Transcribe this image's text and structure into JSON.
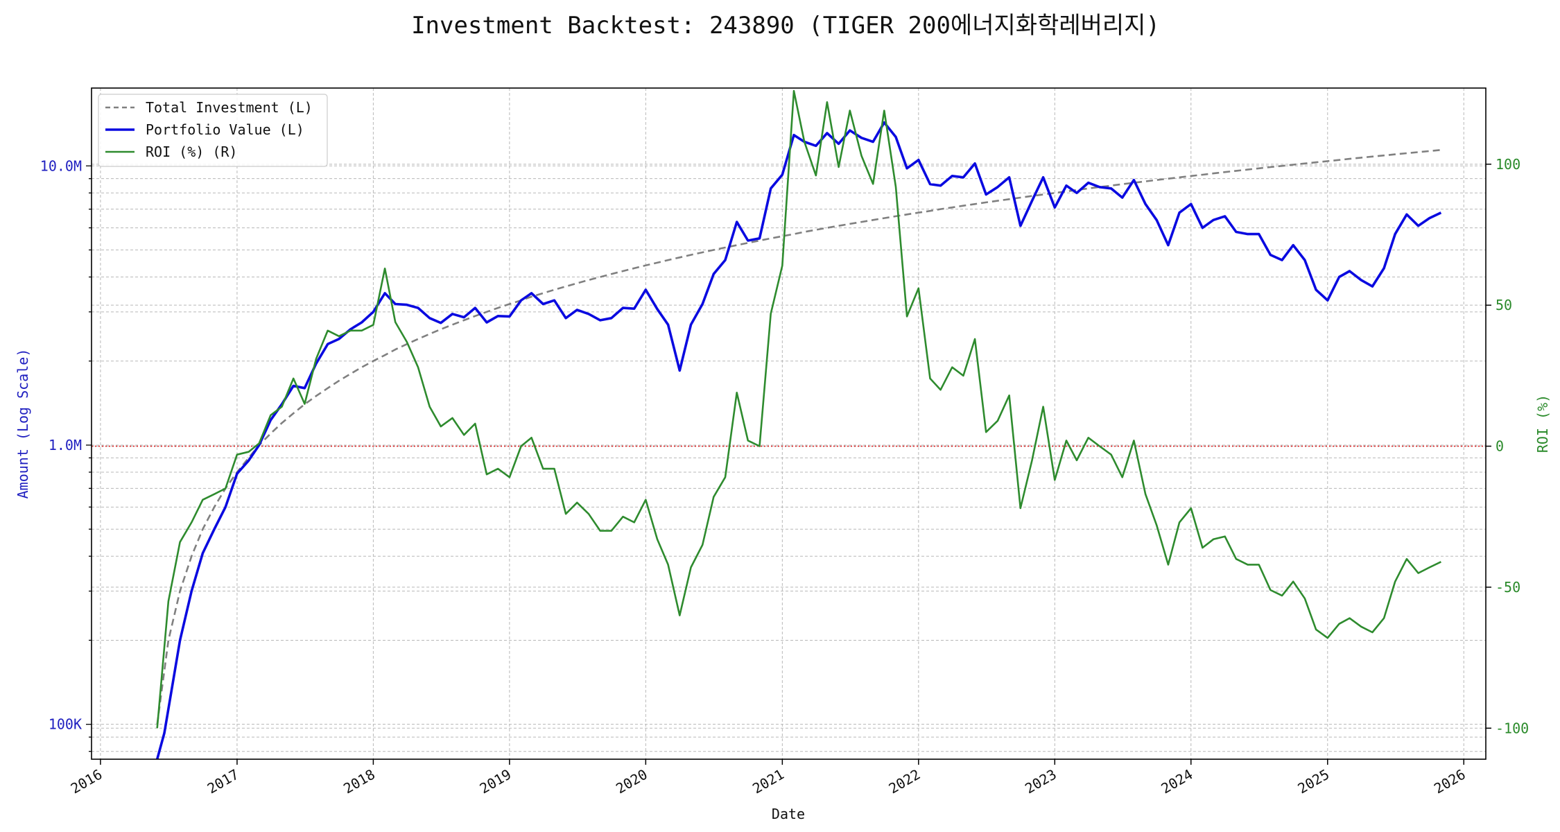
{
  "chart_data": {
    "type": "line",
    "title": "Investment Backtest: 243890 (TIGER 200에너지화학레버리지)",
    "xlabel": "Date",
    "ylabel_left": "Amount (Log Scale)",
    "ylabel_right": "ROI (%)",
    "x_ticks": [
      "2016",
      "2017",
      "2018",
      "2019",
      "2020",
      "2021",
      "2022",
      "2023",
      "2024",
      "2025",
      "2026"
    ],
    "left_ticks": [
      {
        "label": "100K",
        "value": 100000
      },
      {
        "label": "1.0M",
        "value": 1000000
      },
      {
        "label": "10.0M",
        "value": 10000000
      }
    ],
    "right_ticks": [
      {
        "label": "100",
        "value": 100
      },
      {
        "label": "50",
        "value": 50
      },
      {
        "label": "0",
        "value": 0
      },
      {
        "label": "-50",
        "value": -50
      },
      {
        "label": "-100",
        "value": -100
      }
    ],
    "xlim": [
      "2015-12-08",
      "2026-03-01"
    ],
    "ylim_left": [
      75000,
      19000000
    ],
    "ylim_right": [
      -111,
      127
    ],
    "left_scale": "log",
    "grid": true,
    "legend_position": "top-left",
    "reference_line": {
      "axis": "right",
      "value": 0,
      "style": "dotted",
      "color": "#dd2222"
    },
    "colors": {
      "investment": "#808080",
      "portfolio": "#0a0ae0",
      "roi": "#2e8b2e",
      "left_axis": "#2020c0",
      "right_axis": "#2a8a2a"
    },
    "series": [
      {
        "name": "Total Investment (L)",
        "axis": "left",
        "style": "dashed",
        "x": [
          "2016-06-01",
          "2016-07-01",
          "2016-08-01",
          "2016-09-01",
          "2016-10-01",
          "2016-11-01",
          "2016-12-01",
          "2017-01-01",
          "2017-02-01",
          "2017-03-01",
          "2017-04-01",
          "2017-05-01",
          "2017-06-01",
          "2017-07-01",
          "2017-08-01",
          "2017-09-01",
          "2017-10-01",
          "2017-11-01",
          "2017-12-01",
          "2018-01-01",
          "2018-02-01",
          "2018-03-01",
          "2018-04-01",
          "2018-05-01",
          "2018-06-01",
          "2018-07-01",
          "2018-08-01",
          "2018-09-01",
          "2018-10-01",
          "2018-11-01",
          "2018-12-01",
          "2019-01-01",
          "2019-02-01",
          "2019-03-01",
          "2019-04-01",
          "2019-05-01",
          "2019-06-01",
          "2019-07-01",
          "2019-08-01",
          "2019-09-01",
          "2019-10-01",
          "2019-11-01",
          "2019-12-01",
          "2020-01-01",
          "2020-02-01",
          "2020-03-01",
          "2020-04-01",
          "2020-05-01",
          "2020-06-01",
          "2020-07-01",
          "2020-08-01",
          "2020-09-01",
          "2020-10-01",
          "2020-11-01",
          "2020-12-01",
          "2021-01-01",
          "2021-02-01",
          "2021-03-01",
          "2021-04-01",
          "2021-05-01",
          "2021-06-01",
          "2021-07-01",
          "2021-08-01",
          "2021-09-01",
          "2021-10-01",
          "2021-11-01",
          "2021-12-01",
          "2022-01-01",
          "2022-02-01",
          "2022-03-01",
          "2022-04-01",
          "2022-05-01",
          "2022-06-01",
          "2022-07-01",
          "2022-08-01",
          "2022-09-01",
          "2022-10-01",
          "2022-11-01",
          "2022-12-01",
          "2023-01-01",
          "2023-02-01",
          "2023-03-01",
          "2023-04-01",
          "2023-05-01",
          "2023-06-01",
          "2023-07-01",
          "2023-08-01",
          "2023-09-01",
          "2023-10-01",
          "2023-11-01",
          "2023-12-01",
          "2024-01-01",
          "2024-02-01",
          "2024-03-01",
          "2024-04-01",
          "2024-05-01",
          "2024-06-01",
          "2024-07-01",
          "2024-08-01",
          "2024-09-01",
          "2024-10-01",
          "2024-11-01",
          "2024-12-01",
          "2025-01-01",
          "2025-02-01",
          "2025-03-01",
          "2025-04-01",
          "2025-05-01",
          "2025-06-01",
          "2025-07-01",
          "2025-08-01",
          "2025-09-01",
          "2025-10-01",
          "2025-11-01"
        ],
        "values": [
          100000,
          200000,
          300000,
          400000,
          500000,
          600000,
          700000,
          800000,
          900000,
          1000000,
          1100000,
          1200000,
          1300000,
          1400000,
          1500000,
          1600000,
          1700000,
          1800000,
          1900000,
          2000000,
          2100000,
          2200000,
          2300000,
          2400000,
          2500000,
          2600000,
          2700000,
          2800000,
          2900000,
          3000000,
          3100000,
          3200000,
          3300000,
          3400000,
          3500000,
          3600000,
          3700000,
          3800000,
          3900000,
          4000000,
          4100000,
          4200000,
          4300000,
          4400000,
          4500000,
          4600000,
          4700000,
          4800000,
          4900000,
          5000000,
          5100000,
          5200000,
          5300000,
          5400000,
          5500000,
          5600000,
          5700000,
          5800000,
          5900000,
          6000000,
          6100000,
          6200000,
          6300000,
          6400000,
          6500000,
          6600000,
          6700000,
          6800000,
          6900000,
          7000000,
          7100000,
          7200000,
          7300000,
          7400000,
          7500000,
          7600000,
          7700000,
          7800000,
          7900000,
          8000000,
          8100000,
          8200000,
          8300000,
          8400000,
          8500000,
          8600000,
          8700000,
          8800000,
          8900000,
          9000000,
          9100000,
          9200000,
          9300000,
          9400000,
          9500000,
          9600000,
          9700000,
          9800000,
          9900000,
          10000000,
          10100000,
          10200000,
          10300000,
          10400000,
          10500000,
          10600000,
          10700000,
          10800000,
          10900000,
          11000000,
          11100000,
          11200000,
          11300000,
          11400000
        ]
      },
      {
        "name": "Portfolio Value (L)",
        "axis": "left",
        "style": "solid",
        "x": [
          "2016-06-01",
          "2016-06-20",
          "2016-08-01",
          "2016-09-01",
          "2016-10-01",
          "2016-11-01",
          "2016-12-01",
          "2017-01-01",
          "2017-02-01",
          "2017-03-01",
          "2017-04-01",
          "2017-05-01",
          "2017-06-01",
          "2017-07-01",
          "2017-08-01",
          "2017-09-01",
          "2017-10-01",
          "2017-11-01",
          "2017-12-01",
          "2018-01-01",
          "2018-02-01",
          "2018-03-01",
          "2018-04-01",
          "2018-05-01",
          "2018-06-01",
          "2018-07-01",
          "2018-08-01",
          "2018-09-01",
          "2018-10-01",
          "2018-11-01",
          "2018-12-01",
          "2019-01-01",
          "2019-02-01",
          "2019-03-01",
          "2019-04-01",
          "2019-05-01",
          "2019-06-01",
          "2019-07-01",
          "2019-08-01",
          "2019-09-01",
          "2019-10-01",
          "2019-11-01",
          "2019-12-01",
          "2020-01-01",
          "2020-02-01",
          "2020-03-01",
          "2020-04-01",
          "2020-05-01",
          "2020-06-01",
          "2020-07-01",
          "2020-08-01",
          "2020-09-01",
          "2020-10-01",
          "2020-11-01",
          "2020-12-01",
          "2021-01-01",
          "2021-02-01",
          "2021-03-01",
          "2021-04-01",
          "2021-05-01",
          "2021-06-01",
          "2021-07-01",
          "2021-08-01",
          "2021-09-01",
          "2021-10-01",
          "2021-11-01",
          "2021-12-01",
          "2022-01-01",
          "2022-02-01",
          "2022-03-01",
          "2022-04-01",
          "2022-05-01",
          "2022-06-01",
          "2022-07-01",
          "2022-08-01",
          "2022-09-01",
          "2022-10-01",
          "2022-11-01",
          "2022-12-01",
          "2023-01-01",
          "2023-02-01",
          "2023-03-01",
          "2023-04-01",
          "2023-05-01",
          "2023-06-01",
          "2023-07-01",
          "2023-08-01",
          "2023-09-01",
          "2023-10-01",
          "2023-11-01",
          "2023-12-01",
          "2024-01-01",
          "2024-02-01",
          "2024-03-01",
          "2024-04-01",
          "2024-05-01",
          "2024-06-01",
          "2024-07-01",
          "2024-08-01",
          "2024-09-01",
          "2024-10-01",
          "2024-11-01",
          "2024-12-01",
          "2025-01-01",
          "2025-02-01",
          "2025-03-01",
          "2025-04-01",
          "2025-05-01",
          "2025-06-01",
          "2025-07-01",
          "2025-08-01",
          "2025-09-01",
          "2025-10-01",
          "2025-11-01"
        ],
        "values": [
          75000,
          93000,
          200000,
          300000,
          410000,
          500000,
          600000,
          790000,
          880000,
          1000000,
          1230000,
          1400000,
          1630000,
          1600000,
          1960000,
          2300000,
          2400000,
          2600000,
          2750000,
          3000000,
          3500000,
          3200000,
          3180000,
          3100000,
          2850000,
          2740000,
          2950000,
          2870000,
          3100000,
          2750000,
          2900000,
          2890000,
          3300000,
          3500000,
          3200000,
          3300000,
          2850000,
          3050000,
          2950000,
          2800000,
          2850000,
          3100000,
          3080000,
          3600000,
          3070000,
          2700000,
          1850000,
          2700000,
          3200000,
          4100000,
          4600000,
          6300000,
          5400000,
          5500000,
          8300000,
          9300000,
          12900000,
          12200000,
          11800000,
          13100000,
          12000000,
          13400000,
          12600000,
          12200000,
          14300000,
          12700000,
          9800000,
          10500000,
          8600000,
          8500000,
          9200000,
          9100000,
          10200000,
          7900000,
          8400000,
          9100000,
          6100000,
          7500000,
          9100000,
          7100000,
          8500000,
          8000000,
          8700000,
          8400000,
          8300000,
          7700000,
          8900000,
          7300000,
          6400000,
          5200000,
          6800000,
          7300000,
          6000000,
          6400000,
          6600000,
          5800000,
          5700000,
          5700000,
          4800000,
          4600000,
          5200000,
          4600000,
          3600000,
          3300000,
          4000000,
          4200000,
          3900000,
          3700000,
          4300000,
          5700000,
          6700000,
          6100000,
          6500000,
          6800000
        ]
      },
      {
        "name": "ROI (%) (R)",
        "axis": "right",
        "style": "solid",
        "x": [
          "2016-06-01",
          "2016-07-01",
          "2016-08-01",
          "2016-09-01",
          "2016-10-01",
          "2016-11-01",
          "2016-12-01",
          "2017-01-01",
          "2017-02-01",
          "2017-03-01",
          "2017-04-01",
          "2017-05-01",
          "2017-06-01",
          "2017-07-01",
          "2017-08-01",
          "2017-09-01",
          "2017-10-01",
          "2017-11-01",
          "2017-12-01",
          "2018-01-01",
          "2018-02-01",
          "2018-03-01",
          "2018-04-01",
          "2018-05-01",
          "2018-06-01",
          "2018-07-01",
          "2018-08-01",
          "2018-09-01",
          "2018-10-01",
          "2018-11-01",
          "2018-12-01",
          "2019-01-01",
          "2019-02-01",
          "2019-03-01",
          "2019-04-01",
          "2019-05-01",
          "2019-06-01",
          "2019-07-01",
          "2019-08-01",
          "2019-09-01",
          "2019-10-01",
          "2019-11-01",
          "2019-12-01",
          "2020-01-01",
          "2020-02-01",
          "2020-03-01",
          "2020-04-01",
          "2020-05-01",
          "2020-06-01",
          "2020-07-01",
          "2020-08-01",
          "2020-09-01",
          "2020-10-01",
          "2020-11-01",
          "2020-12-01",
          "2021-01-01",
          "2021-02-01",
          "2021-03-01",
          "2021-04-01",
          "2021-05-01",
          "2021-06-01",
          "2021-07-01",
          "2021-08-01",
          "2021-09-01",
          "2021-10-01",
          "2021-11-01",
          "2021-12-01",
          "2022-01-01",
          "2022-02-01",
          "2022-03-01",
          "2022-04-01",
          "2022-05-01",
          "2022-06-01",
          "2022-07-01",
          "2022-08-01",
          "2022-09-01",
          "2022-10-01",
          "2022-11-01",
          "2022-12-01",
          "2023-01-01",
          "2023-02-01",
          "2023-03-01",
          "2023-04-01",
          "2023-05-01",
          "2023-06-01",
          "2023-07-01",
          "2023-08-01",
          "2023-09-01",
          "2023-10-01",
          "2023-11-01",
          "2023-12-01",
          "2024-01-01",
          "2024-02-01",
          "2024-03-01",
          "2024-04-01",
          "2024-05-01",
          "2024-06-01",
          "2024-07-01",
          "2024-08-01",
          "2024-09-01",
          "2024-10-01",
          "2024-11-01",
          "2024-12-01",
          "2025-01-01",
          "2025-02-01",
          "2025-03-01",
          "2025-04-01",
          "2025-05-01",
          "2025-06-01",
          "2025-07-01",
          "2025-08-01",
          "2025-09-01",
          "2025-10-01",
          "2025-11-01"
        ],
        "values": [
          -100,
          -55,
          -34,
          -27,
          -19,
          -17,
          -15,
          -3,
          -2,
          1,
          11,
          14,
          24,
          15,
          31,
          41,
          39,
          41,
          41,
          43,
          63,
          44,
          37,
          28,
          14,
          7,
          10,
          4,
          8,
          -10,
          -8,
          -11,
          0,
          3,
          -8,
          -8,
          -24,
          -20,
          -24,
          -30,
          -30,
          -25,
          -27,
          -19,
          -33,
          -42,
          -60,
          -43,
          -35,
          -18,
          -11,
          19,
          2,
          0,
          47,
          64,
          126,
          108,
          96,
          122,
          99,
          119,
          103,
          93,
          119,
          92,
          46,
          56,
          24,
          20,
          28,
          25,
          38,
          5,
          9,
          18,
          -22,
          -5,
          14,
          -12,
          2,
          -5,
          3,
          0,
          -3,
          -11,
          2,
          -17,
          -28,
          -42,
          -27,
          -22,
          -36,
          -33,
          -32,
          -40,
          -42,
          -42,
          -51,
          -53,
          -48,
          -54,
          -65,
          -68,
          -63,
          -61,
          -64,
          -66,
          -61,
          -48,
          -40,
          -45,
          -43,
          -41
        ]
      }
    ]
  }
}
